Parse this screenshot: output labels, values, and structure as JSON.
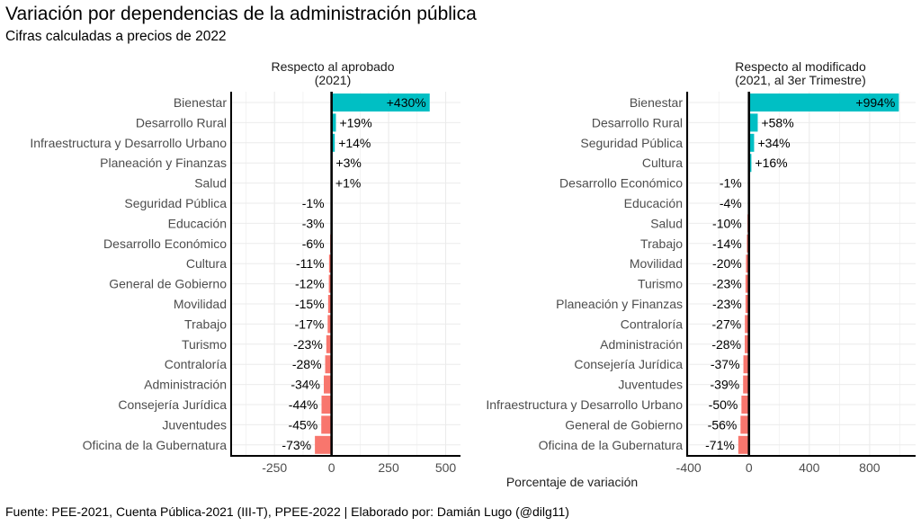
{
  "chart_data": {
    "type": "bar",
    "title": "Variación por dependencias de la administración pública",
    "subtitle": "Cifras calculadas a precios de 2022",
    "xlabel": "Porcentaje de variación",
    "ylabel": "",
    "caption": "Fuente: PEE-2021, Cuenta Pública-2021 (III-T), PPEE-2022 | Elaborado por: Damián Lugo (@dilg11)",
    "orientation": "horizontal",
    "grid": true,
    "legend": "none",
    "colors": {
      "positive": "#00BFC4",
      "negative": "#F8766D",
      "zero_line": "#000000",
      "grid": "#EBEBEB",
      "axis": "#000000"
    },
    "panels": [
      {
        "title_lines": [
          "Respecto al aprobado",
          "(2021)"
        ],
        "xlim": [
          -440,
          565
        ],
        "xticks": [
          -250,
          0,
          250,
          500
        ],
        "xtick_labels": [
          "-250",
          "0",
          "250",
          "500"
        ],
        "categories": [
          "Bienestar",
          "Desarrollo Rural",
          "Infraestructura y Desarrollo Urbano",
          "Planeación y Finanzas",
          "Salud",
          "Seguridad Pública",
          "Educación",
          "Desarrollo Económico",
          "Cultura",
          "General de Gobierno",
          "Movilidad",
          "Trabajo",
          "Turismo",
          "Contraloría",
          "Administración",
          "Consejería Jurídica",
          "Juventudes",
          "Oficina de la Gubernatura"
        ],
        "values": [
          430,
          19,
          14,
          3,
          1,
          -1,
          -3,
          -6,
          -11,
          -12,
          -15,
          -17,
          -23,
          -28,
          -34,
          -44,
          -45,
          -73
        ],
        "labels": [
          "+430%",
          "+19%",
          "+14%",
          "+3%",
          "+1%",
          "-1%",
          "-3%",
          "-6%",
          "-11%",
          "-12%",
          "-15%",
          "-17%",
          "-23%",
          "-28%",
          "-34%",
          "-44%",
          "-45%",
          "-73%"
        ]
      },
      {
        "title_lines": [
          "Respecto al modificado",
          "(2021, al 3er Trimestre)"
        ],
        "xlim": [
          -410,
          1105
        ],
        "xticks": [
          -400,
          0,
          400,
          800
        ],
        "xtick_labels": [
          "-400",
          "0",
          "400",
          "800"
        ],
        "categories": [
          "Bienestar",
          "Desarrollo Rural",
          "Seguridad Pública",
          "Cultura",
          "Desarrollo Económico",
          "Educación",
          "Salud",
          "Trabajo",
          "Movilidad",
          "Turismo",
          "Planeación y Finanzas",
          "Contraloría",
          "Administración",
          "Consejería Jurídica",
          "Juventudes",
          "Infraestructura y Desarrollo Urbano",
          "General de Gobierno",
          "Oficina de la Gubernatura"
        ],
        "values": [
          994,
          58,
          34,
          16,
          -1,
          -4,
          -10,
          -14,
          -20,
          -23,
          -23,
          -27,
          -28,
          -37,
          -39,
          -50,
          -56,
          -71
        ],
        "labels": [
          "+994%",
          "+58%",
          "+34%",
          "+16%",
          "-1%",
          "-4%",
          "-10%",
          "-14%",
          "-20%",
          "-23%",
          "-23%",
          "-27%",
          "-28%",
          "-37%",
          "-39%",
          "-50%",
          "-56%",
          "-71%"
        ]
      }
    ]
  }
}
